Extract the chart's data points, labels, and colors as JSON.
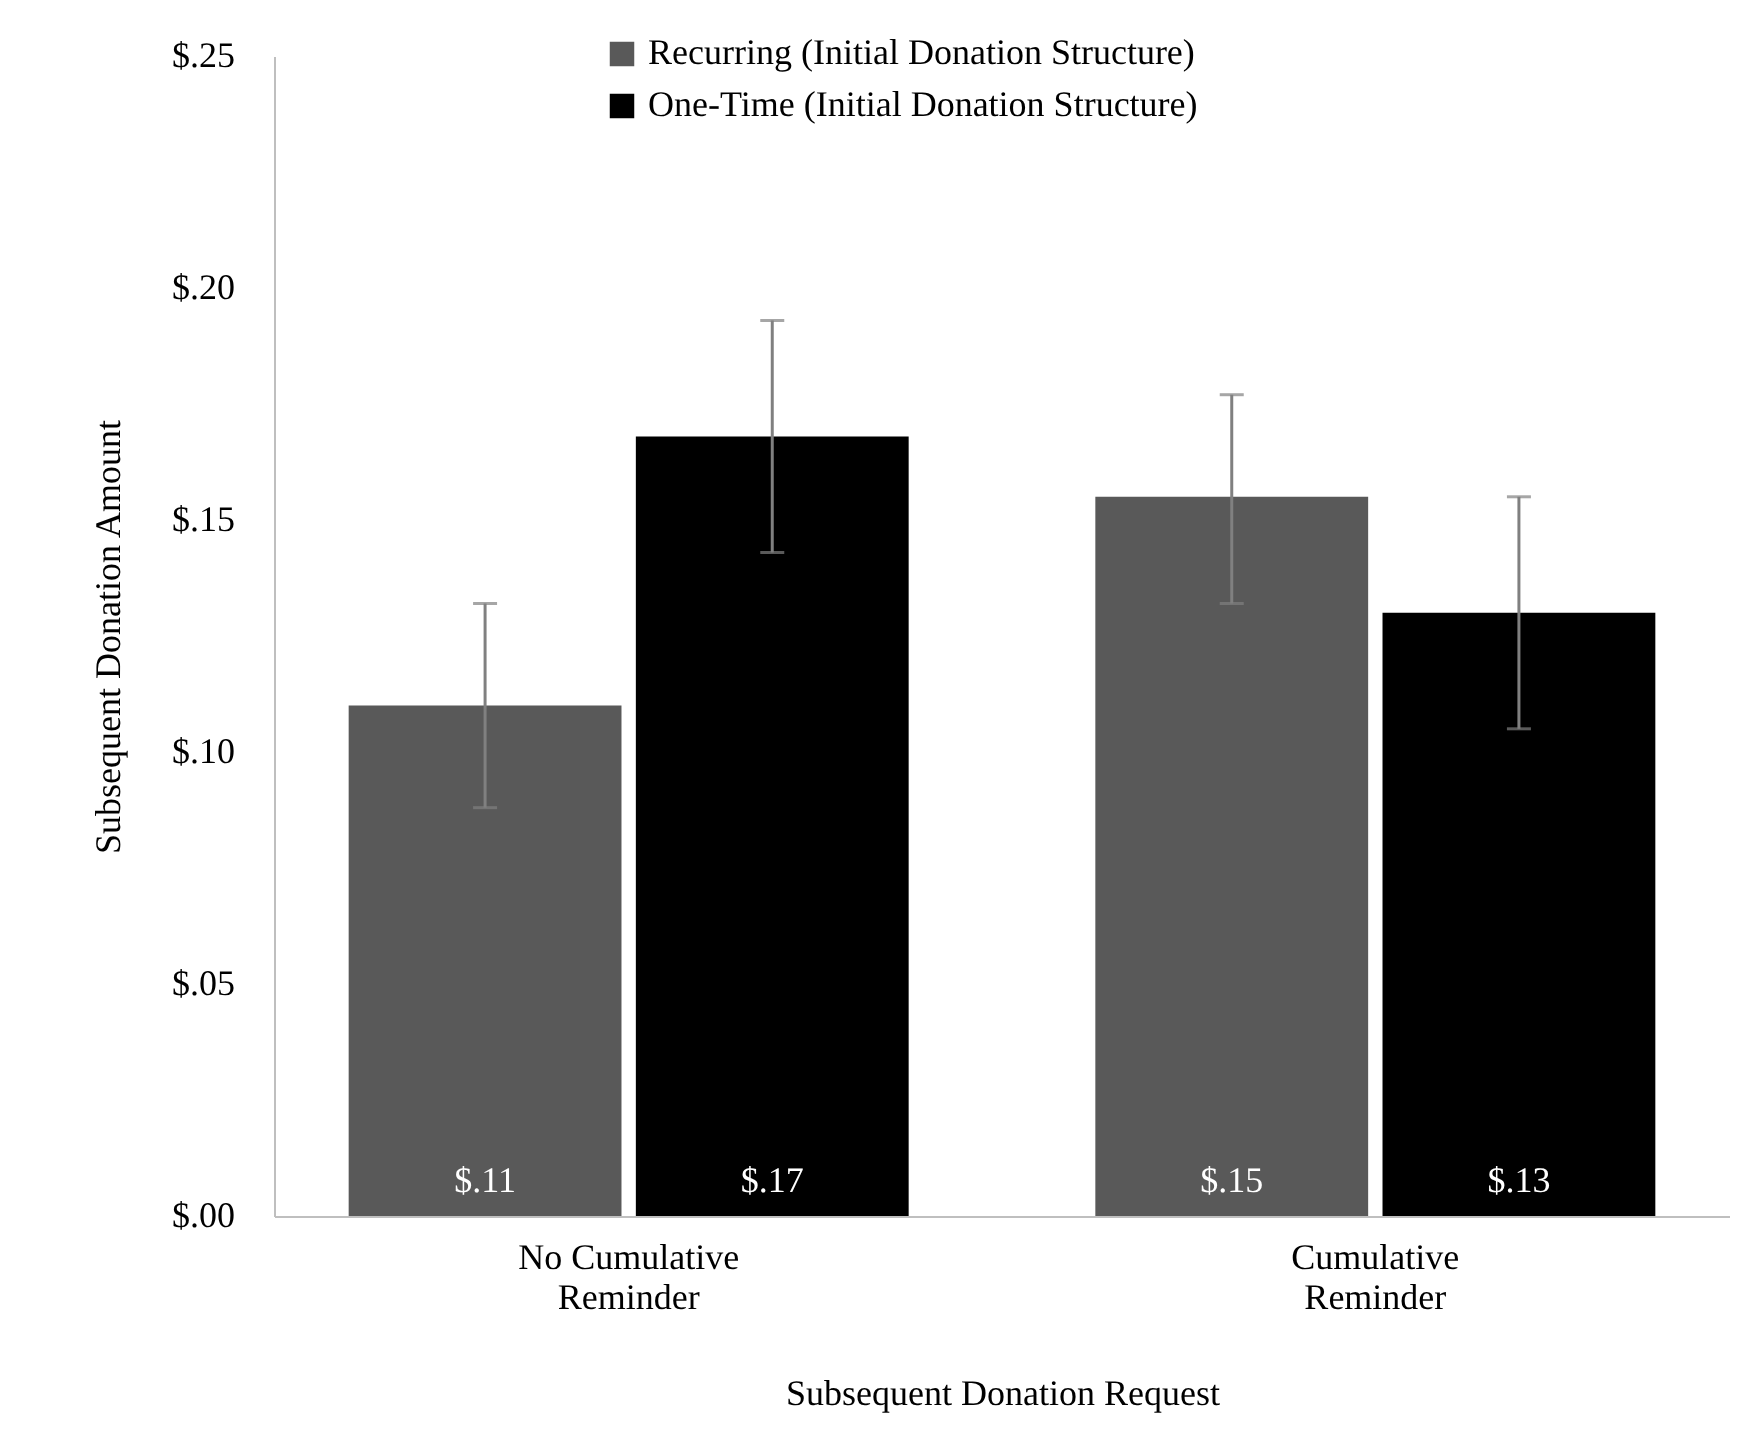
{
  "chart_data": {
    "type": "bar",
    "xlabel": "Subsequent Donation Request",
    "ylabel": "Subsequent Donation Amount",
    "categories": [
      "No Cumulative Reminder",
      "Cumulative Reminder"
    ],
    "series": [
      {
        "name": "Recurring (Initial Donation Structure)",
        "color": "#595959",
        "values": [
          0.11,
          0.155
        ],
        "errors": [
          [
            0.088,
            0.132
          ],
          [
            0.132,
            0.177
          ]
        ],
        "value_labels": [
          "$.11",
          "$.15"
        ]
      },
      {
        "name": "One-Time (Initial Donation Structure)",
        "color": "#000000",
        "values": [
          0.168,
          0.13
        ],
        "errors": [
          [
            0.143,
            0.193
          ],
          [
            0.105,
            0.155
          ]
        ],
        "value_labels": [
          "$.17",
          "$.13"
        ]
      }
    ],
    "ylim": [
      0,
      0.25
    ],
    "yticks": [
      {
        "value": 0,
        "label": "$.00"
      },
      {
        "value": 0.05,
        "label": "$.05"
      },
      {
        "value": 0.1,
        "label": "$.10"
      },
      {
        "value": 0.15,
        "label": "$.15"
      },
      {
        "value": 0.2,
        "label": "$.20"
      },
      {
        "value": 0.25,
        "label": "$.25"
      }
    ],
    "grid": false,
    "legend": "top"
  }
}
